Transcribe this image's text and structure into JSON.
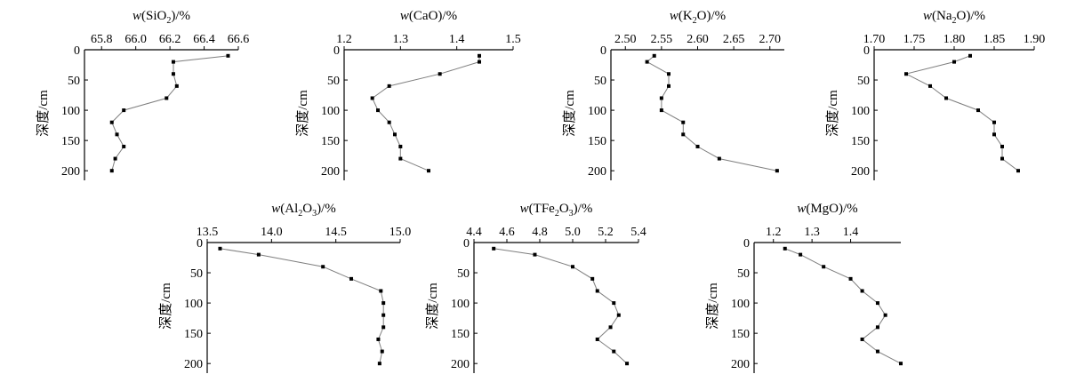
{
  "chart_data": [
    {
      "type": "line",
      "title_parts": [
        "w",
        "(SiO",
        "2",
        ")/%"
      ],
      "ylabel": "深度/cm",
      "xlim": [
        65.7,
        66.6
      ],
      "xticks": [
        65.8,
        66.0,
        66.2,
        66.4,
        66.6
      ],
      "xtick_labels": [
        "65.8",
        "66.0",
        "66.2",
        "66.4",
        "66.6"
      ],
      "ylim": [
        0,
        210
      ],
      "yticks": [
        0,
        50,
        100,
        150,
        200
      ],
      "ytick_labels": [
        "0",
        "50",
        "100",
        "150",
        "200"
      ],
      "x": [
        66.54,
        66.22,
        66.22,
        66.24,
        66.18,
        65.93,
        65.86,
        65.89,
        65.93,
        65.88,
        65.86
      ],
      "y": [
        10,
        20,
        40,
        60,
        80,
        100,
        120,
        140,
        160,
        180,
        200
      ]
    },
    {
      "type": "line",
      "title_parts": [
        "w",
        "(CaO)/%"
      ],
      "ylabel": "深度/cm",
      "xlim": [
        1.2,
        1.5
      ],
      "xticks": [
        1.2,
        1.3,
        1.4,
        1.5
      ],
      "xtick_labels": [
        "1.2",
        "1.3",
        "1.4",
        "1.5"
      ],
      "ylim": [
        0,
        210
      ],
      "yticks": [
        0,
        50,
        100,
        150,
        200
      ],
      "ytick_labels": [
        "0",
        "50",
        "100",
        "150",
        "200"
      ],
      "x": [
        1.44,
        1.44,
        1.37,
        1.28,
        1.25,
        1.26,
        1.28,
        1.29,
        1.3,
        1.3,
        1.35
      ],
      "y": [
        10,
        20,
        40,
        60,
        80,
        100,
        120,
        140,
        160,
        180,
        200
      ]
    },
    {
      "type": "line",
      "title_parts": [
        "w",
        "(K",
        "2",
        "O)/%"
      ],
      "ylabel": "深度/cm",
      "xlim": [
        2.48,
        2.72
      ],
      "xticks": [
        2.5,
        2.55,
        2.6,
        2.65,
        2.7
      ],
      "xtick_labels": [
        "2.50",
        "2.55",
        "2.60",
        "2.65",
        "2.70"
      ],
      "ylim": [
        0,
        210
      ],
      "yticks": [
        0,
        50,
        100,
        150,
        200
      ],
      "ytick_labels": [
        "0",
        "50",
        "100",
        "150",
        "200"
      ],
      "x": [
        2.54,
        2.53,
        2.56,
        2.56,
        2.55,
        2.55,
        2.58,
        2.58,
        2.6,
        2.63,
        2.71
      ],
      "y": [
        10,
        20,
        40,
        60,
        80,
        100,
        120,
        140,
        160,
        180,
        200
      ]
    },
    {
      "type": "line",
      "title_parts": [
        "w",
        "(Na",
        "2",
        "O)/%"
      ],
      "ylabel": "深度/cm",
      "xlim": [
        1.7,
        1.9
      ],
      "xticks": [
        1.7,
        1.75,
        1.8,
        1.85,
        1.9
      ],
      "xtick_labels": [
        "1.70",
        "1.75",
        "1.80",
        "1.85",
        "1.90"
      ],
      "ylim": [
        0,
        210
      ],
      "yticks": [
        0,
        50,
        100,
        150,
        200
      ],
      "ytick_labels": [
        "0",
        "50",
        "100",
        "150",
        "200"
      ],
      "x": [
        1.82,
        1.8,
        1.74,
        1.77,
        1.79,
        1.83,
        1.85,
        1.85,
        1.86,
        1.86,
        1.88
      ],
      "y": [
        10,
        20,
        40,
        60,
        80,
        100,
        120,
        140,
        160,
        180,
        200
      ]
    },
    {
      "type": "line",
      "title_parts": [
        "w",
        "(Al",
        "2",
        "O",
        "3",
        ")/%"
      ],
      "ylabel": "深度/cm",
      "xlim": [
        13.5,
        15.0
      ],
      "xticks": [
        13.5,
        14.0,
        14.5,
        15.0
      ],
      "xtick_labels": [
        "13.5",
        "14.0",
        "14.5",
        "15.0"
      ],
      "ylim": [
        0,
        210
      ],
      "yticks": [
        0,
        50,
        100,
        150,
        200
      ],
      "ytick_labels": [
        "0",
        "50",
        "100",
        "150",
        "200"
      ],
      "x": [
        13.6,
        13.9,
        14.4,
        14.62,
        14.85,
        14.87,
        14.87,
        14.87,
        14.83,
        14.86,
        14.84
      ],
      "y": [
        10,
        20,
        40,
        60,
        80,
        100,
        120,
        140,
        160,
        180,
        200
      ]
    },
    {
      "type": "line",
      "title_parts": [
        "w",
        "(TFe",
        "2",
        "O",
        "3",
        ")/%"
      ],
      "ylabel": "深度/cm",
      "xlim": [
        4.4,
        5.4
      ],
      "xticks": [
        4.4,
        4.6,
        4.8,
        5.0,
        5.2,
        5.4
      ],
      "xtick_labels": [
        "4.4",
        "4.6",
        "4.8",
        "5.0",
        "5.2",
        "5.4"
      ],
      "ylim": [
        0,
        210
      ],
      "yticks": [
        0,
        50,
        100,
        150,
        200
      ],
      "ytick_labels": [
        "0",
        "50",
        "100",
        "150",
        "200"
      ],
      "x": [
        4.52,
        4.77,
        5.0,
        5.12,
        5.15,
        5.25,
        5.28,
        5.23,
        5.15,
        5.25,
        5.33
      ],
      "y": [
        10,
        20,
        40,
        60,
        80,
        100,
        120,
        140,
        160,
        180,
        200
      ]
    },
    {
      "type": "line",
      "title_parts": [
        "w",
        "(MgO)/%"
      ],
      "ylabel": "深度/cm",
      "xlim": [
        1.15,
        1.53
      ],
      "xticks": [
        1.2,
        1.3,
        1.4
      ],
      "xtick_labels": [
        "1.2",
        "1.3",
        "1.4"
      ],
      "ylim": [
        0,
        210
      ],
      "yticks": [
        0,
        50,
        100,
        150,
        200
      ],
      "ytick_labels": [
        "0",
        "50",
        "100",
        "150",
        "200"
      ],
      "x": [
        1.23,
        1.27,
        1.33,
        1.4,
        1.43,
        1.47,
        1.49,
        1.47,
        1.43,
        1.47,
        1.53
      ],
      "y": [
        10,
        20,
        40,
        60,
        80,
        100,
        120,
        140,
        160,
        180,
        200
      ]
    }
  ]
}
